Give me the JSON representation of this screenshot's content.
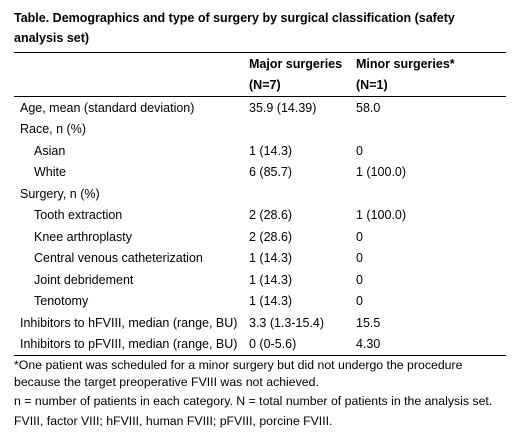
{
  "title": "Table. Demographics and type of surgery by surgical classification (safety analysis set)",
  "columns": {
    "major": {
      "label": "Major surgeries",
      "n": "(N=7)"
    },
    "minor": {
      "label": "Minor surgeries*",
      "n": "(N=1)"
    }
  },
  "rows": [
    {
      "label": "Age, mean (standard deviation)",
      "major": "35.9 (14.39)",
      "minor": "58.0",
      "indent": false
    },
    {
      "label": "Race, n (%)",
      "major": "",
      "minor": "",
      "indent": false
    },
    {
      "label": "Asian",
      "major": "1 (14.3)",
      "minor": "0",
      "indent": true
    },
    {
      "label": "White",
      "major": "6 (85.7)",
      "minor": "1 (100.0)",
      "indent": true
    },
    {
      "label": "Surgery, n (%)",
      "major": "",
      "minor": "",
      "indent": false
    },
    {
      "label": "Tooth extraction",
      "major": "2 (28.6)",
      "minor": "1 (100.0)",
      "indent": true
    },
    {
      "label": "Knee arthroplasty",
      "major": "2 (28.6)",
      "minor": "0",
      "indent": true
    },
    {
      "label": "Central venous catheterization",
      "major": "1 (14.3)",
      "minor": "0",
      "indent": true
    },
    {
      "label": "Joint debridement",
      "major": "1 (14.3)",
      "minor": "0",
      "indent": true
    },
    {
      "label": "Tenotomy",
      "major": "1 (14.3)",
      "minor": "0",
      "indent": true
    },
    {
      "label": "Inhibitors to hFVIII, median (range, BU)",
      "major": "3.3 (1.3-15.4)",
      "minor": "15.5",
      "indent": false
    },
    {
      "label": "Inhibitors to pFVIII, median (range, BU)",
      "major": "0 (0-5.6)",
      "minor": "4.30",
      "indent": false
    }
  ],
  "footnotes": [
    "*One patient was scheduled for a minor surgery but did not undergo the procedure because the target preoperative FVIII was not achieved.",
    "n = number of patients in each category. N = total number of patients in the analysis set.",
    "FVIII, factor VIII; hFVIII, human FVIII; pFVIII, porcine FVIII."
  ]
}
